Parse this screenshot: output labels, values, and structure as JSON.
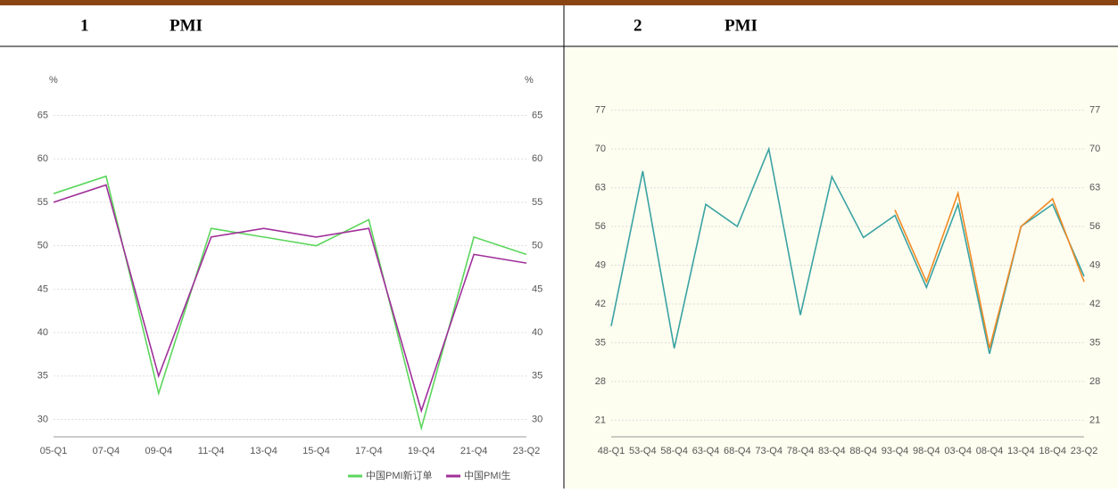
{
  "chart_data": [
    {
      "type": "line",
      "number": "1",
      "title": "PMI",
      "y_unit": "%",
      "categories": [
        "05-Q1",
        "07-Q4",
        "09-Q4",
        "11-Q4",
        "13-Q4",
        "15-Q4",
        "17-Q4",
        "19-Q4",
        "21-Q4",
        "23-Q2"
      ],
      "series": [
        {
          "name": "中国PMI新订单",
          "color": "#5cd65c",
          "values": [
            56,
            58,
            33,
            52,
            51,
            50,
            53,
            29,
            51,
            49
          ]
        },
        {
          "name": "中国PMI生",
          "color": "#a0309a",
          "values": [
            55,
            57,
            35,
            51,
            52,
            51,
            52,
            31,
            49,
            48
          ]
        }
      ],
      "ylim": [
        28,
        67
      ],
      "yticks": [
        30,
        35,
        40,
        45,
        50,
        55,
        60,
        65
      ],
      "grid": true
    },
    {
      "type": "line",
      "number": "2",
      "title": "PMI",
      "categories": [
        "48-Q1",
        "53-Q4",
        "58-Q4",
        "63-Q4",
        "68-Q4",
        "73-Q4",
        "78-Q4",
        "83-Q4",
        "88-Q4",
        "93-Q4",
        "98-Q4",
        "03-Q4",
        "08-Q4",
        "13-Q4",
        "18-Q4",
        "23-Q2"
      ],
      "series": [
        {
          "color": "#3aa3a3",
          "values": [
            38,
            66,
            34,
            60,
            56,
            70,
            40,
            65,
            54,
            58,
            45,
            60,
            33,
            56,
            60,
            47
          ]
        },
        {
          "color": "#f08a24",
          "values": [
            null,
            null,
            null,
            null,
            null,
            null,
            null,
            null,
            null,
            59,
            46,
            62,
            34,
            56,
            61,
            46
          ]
        }
      ],
      "ylim": [
        18,
        80
      ],
      "yticks": [
        21,
        28,
        35,
        42,
        49,
        56,
        63,
        70,
        77
      ],
      "grid": true
    }
  ]
}
